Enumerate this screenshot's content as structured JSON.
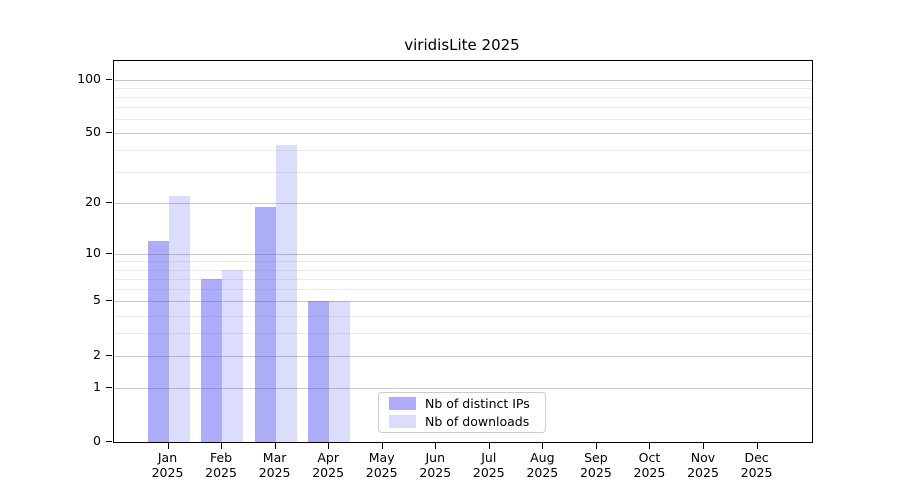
{
  "title": "viridisLite 2025",
  "chart_data": {
    "type": "bar",
    "title": "viridisLite 2025",
    "scale": "log1p",
    "grid": "on",
    "categories": [
      {
        "month": "Jan",
        "year": "2025"
      },
      {
        "month": "Feb",
        "year": "2025"
      },
      {
        "month": "Mar",
        "year": "2025"
      },
      {
        "month": "Apr",
        "year": "2025"
      },
      {
        "month": "May",
        "year": "2025"
      },
      {
        "month": "Jun",
        "year": "2025"
      },
      {
        "month": "Jul",
        "year": "2025"
      },
      {
        "month": "Aug",
        "year": "2025"
      },
      {
        "month": "Sep",
        "year": "2025"
      },
      {
        "month": "Oct",
        "year": "2025"
      },
      {
        "month": "Nov",
        "year": "2025"
      },
      {
        "month": "Dec",
        "year": "2025"
      }
    ],
    "series": [
      {
        "name": "Nb of distinct IPs",
        "color": "rgba(82,82,238,0.48)",
        "color_hex_on_white": "#acacf7",
        "values": [
          12,
          7,
          19,
          5,
          0,
          0,
          0,
          0,
          0,
          0,
          0,
          0
        ]
      },
      {
        "name": "Nb of downloads",
        "color": "rgba(82,82,238,0.20)",
        "color_hex_on_white": "#dcdcfb",
        "values": [
          22,
          8,
          43,
          5,
          0,
          0,
          0,
          0,
          0,
          0,
          0,
          0
        ]
      }
    ],
    "y_axis": {
      "major_ticks": [
        100,
        50,
        20,
        10,
        5,
        2,
        1,
        0
      ],
      "minor_ticks": [
        3,
        4,
        6,
        7,
        8,
        9,
        30,
        40,
        60,
        70,
        80,
        90
      ],
      "ylim_top_value": 125
    },
    "legend": {
      "position": "inside-bottom-center",
      "entries": [
        "Nb of distinct IPs",
        "Nb of downloads"
      ]
    },
    "colors": {
      "major_grid": "#c9c9c9",
      "minor_grid": "#ececec",
      "spine": "#000000",
      "text": "#000000"
    }
  }
}
